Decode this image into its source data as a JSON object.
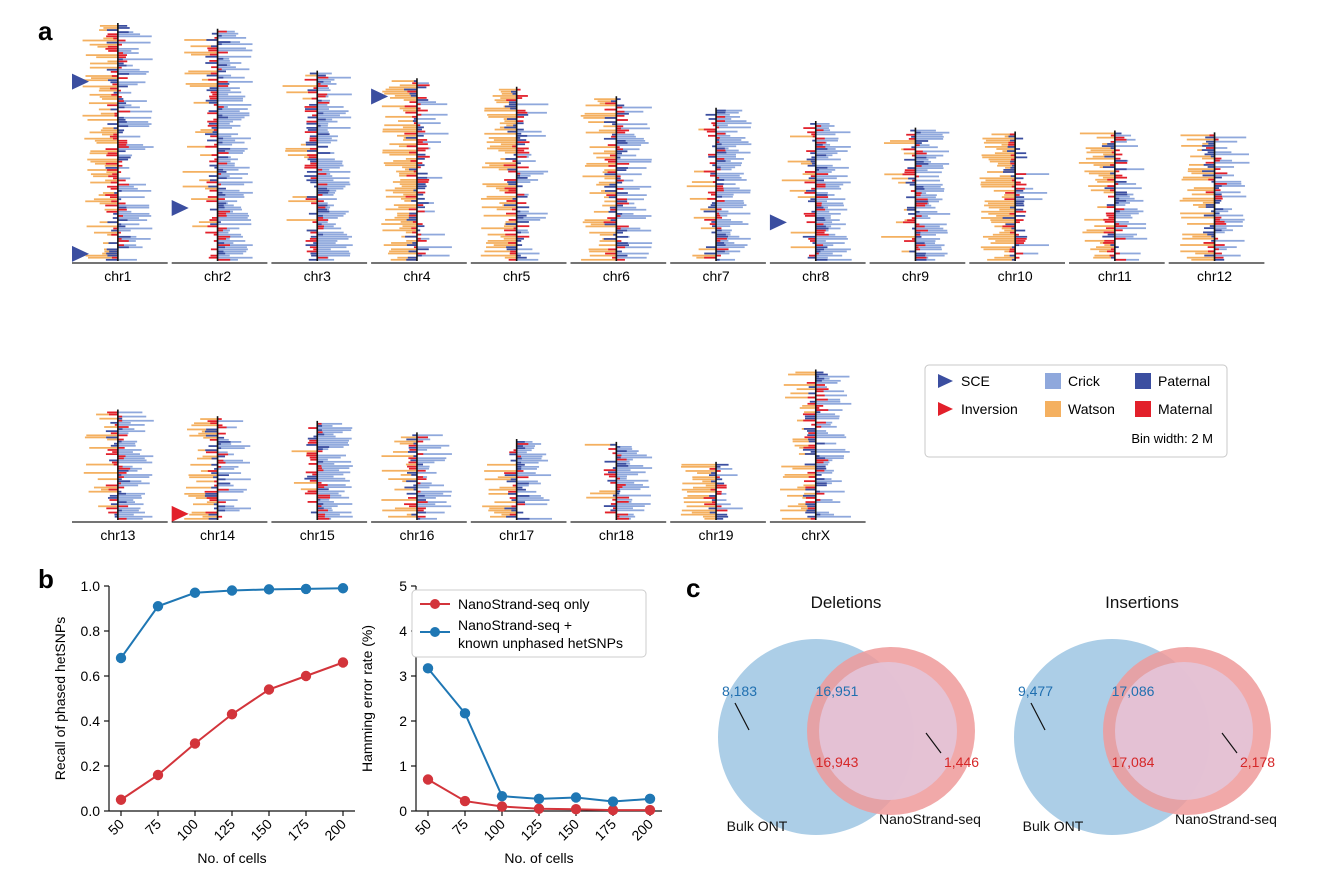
{
  "panels": {
    "a": "a",
    "b": "b",
    "c": "c"
  },
  "colors": {
    "crick": "#8fa8dc",
    "watson": "#f4b060",
    "paternal": "#3b4ea0",
    "maternal": "#e2202b",
    "sce": "#3b4ea0",
    "inversion": "#e2202b",
    "red_line": "#d3343b",
    "blue_line": "#1f77b4",
    "venn_blue": "#9ec5e3",
    "venn_red": "#ee9a9a",
    "venn_overlap": "#e4c3d6",
    "num_blue": "#1f6fb0",
    "num_red": "#d62728"
  },
  "legend": {
    "sce": "SCE",
    "inversion": "Inversion",
    "crick": "Crick",
    "watson": "Watson",
    "paternal": "Paternal",
    "maternal": "Maternal",
    "bin_width": "Bin width: 2 M"
  },
  "ideogram": {
    "row1": [
      {
        "name": "chr1",
        "size_mb": 248,
        "pattern": "mix",
        "sce": [
          0.24,
          0.97
        ]
      },
      {
        "name": "chr2",
        "size_mb": 242,
        "pattern": "crick",
        "sce": [
          0.77
        ]
      },
      {
        "name": "chr3",
        "size_mb": 198,
        "pattern": "crick",
        "sce": []
      },
      {
        "name": "chr4",
        "size_mb": 190,
        "pattern": "watson",
        "sce": [
          0.09
        ]
      },
      {
        "name": "chr5",
        "size_mb": 181,
        "pattern": "watson",
        "sce": []
      },
      {
        "name": "chr6",
        "size_mb": 171,
        "pattern": "mix",
        "sce": []
      },
      {
        "name": "chr7",
        "size_mb": 159,
        "pattern": "crick",
        "sce": []
      },
      {
        "name": "chr8",
        "size_mb": 145,
        "pattern": "crick",
        "sce": [
          0.72
        ]
      },
      {
        "name": "chr9",
        "size_mb": 138,
        "pattern": "crick",
        "sce": []
      },
      {
        "name": "chr10",
        "size_mb": 134,
        "pattern": "watson",
        "sce": []
      },
      {
        "name": "chr11",
        "size_mb": 135,
        "pattern": "mix",
        "sce": []
      },
      {
        "name": "chr12",
        "size_mb": 133,
        "pattern": "mix",
        "sce": []
      }
    ],
    "row2": [
      {
        "name": "chr13",
        "size_mb": 114,
        "pattern": "crick",
        "sce": [],
        "inversion": null
      },
      {
        "name": "chr14",
        "size_mb": 107,
        "pattern": "mix",
        "sce": [],
        "inversion": 0.94
      },
      {
        "name": "chr15",
        "size_mb": 102,
        "pattern": "crick",
        "sce": [],
        "inversion": null
      },
      {
        "name": "chr16",
        "size_mb": 90,
        "pattern": "mix",
        "sce": [],
        "inversion": null
      },
      {
        "name": "chr17",
        "size_mb": 83,
        "pattern": "mix",
        "sce": [],
        "inversion": null
      },
      {
        "name": "chr18",
        "size_mb": 80,
        "pattern": "crick",
        "sce": [],
        "inversion": null
      },
      {
        "name": "chr19",
        "size_mb": 59,
        "pattern": "watson",
        "sce": [],
        "inversion": null
      },
      {
        "name": "chrX",
        "size_mb": 156,
        "pattern": "mix",
        "sce": [],
        "inversion": null
      }
    ]
  },
  "chart_data": [
    {
      "type": "line",
      "panel": "b-left",
      "x": [
        50,
        75,
        100,
        125,
        150,
        175,
        200
      ],
      "xticklabels": [
        "50",
        "75",
        "100",
        "125",
        "150",
        "175",
        "200"
      ],
      "series": [
        {
          "name": "NanoStrand-seq only",
          "color": "#d3343b",
          "values": [
            0.05,
            0.16,
            0.3,
            0.43,
            0.54,
            0.6,
            0.66
          ]
        },
        {
          "name": "NanoStrand-seq + known unphased hetSNPs",
          "color": "#1f77b4",
          "values": [
            0.68,
            0.91,
            0.97,
            0.98,
            0.985,
            0.987,
            0.99
          ]
        }
      ],
      "xlabel": "No. of cells",
      "ylabel": "Recall of phased hetSNPs",
      "ylim": [
        0.0,
        1.0
      ],
      "yticks": [
        "0.0",
        "0.2",
        "0.4",
        "0.6",
        "0.8",
        "1.0"
      ]
    },
    {
      "type": "line",
      "panel": "b-right",
      "x": [
        50,
        75,
        100,
        125,
        150,
        175,
        200
      ],
      "xticklabels": [
        "50",
        "75",
        "100",
        "125",
        "150",
        "175",
        "200"
      ],
      "series": [
        {
          "name": "NanoStrand-seq only",
          "color": "#d3343b",
          "values": [
            0.7,
            0.22,
            0.1,
            0.05,
            0.04,
            0.02,
            0.02
          ]
        },
        {
          "name": "NanoStrand-seq + known unphased hetSNPs",
          "color": "#1f77b4",
          "values": [
            3.17,
            2.17,
            0.33,
            0.27,
            0.3,
            0.21,
            0.27
          ]
        }
      ],
      "xlabel": "No. of cells",
      "ylabel": "Hamming error rate (%)",
      "ylim": [
        0,
        5
      ],
      "yticks": [
        "0",
        "1",
        "2",
        "3",
        "4",
        "5"
      ],
      "legend_labels": [
        "NanoStrand-seq only",
        "NanoStrand-seq +",
        "known unphased hetSNPs"
      ]
    }
  ],
  "venn": [
    {
      "title": "Deletions",
      "left_only": "8,183",
      "overlap_top": "16,951",
      "overlap_bottom": "16,943",
      "right_only": "1,446",
      "left_label": "Bulk ONT",
      "right_label": "NanoStrand-seq"
    },
    {
      "title": "Insertions",
      "left_only": "9,477",
      "overlap_top": "17,086",
      "overlap_bottom": "17,084",
      "right_only": "2,178",
      "left_label": "Bulk ONT",
      "right_label": "NanoStrand-seq"
    }
  ]
}
